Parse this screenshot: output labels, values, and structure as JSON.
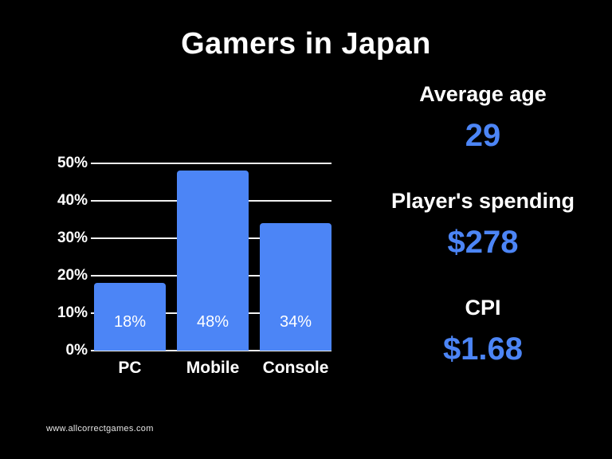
{
  "title": "Gamers in Japan",
  "colors": {
    "background": "#000000",
    "accent": "#4c85f6",
    "text": "#ffffff",
    "gridline": "#f2f2f2"
  },
  "chart_data": {
    "type": "bar",
    "title": "Gamers in Japan",
    "categories": [
      "PC",
      "Mobile",
      "Console"
    ],
    "values": [
      18,
      48,
      34
    ],
    "value_labels": [
      "18%",
      "48%",
      "34%"
    ],
    "xlabel": "",
    "ylabel": "",
    "ylim": [
      0,
      50
    ],
    "yticks": [
      "0%",
      "10%",
      "20%",
      "30%",
      "40%",
      "50%"
    ],
    "grid": true,
    "legend": "none",
    "bar_color": "#4c85f6"
  },
  "stats": [
    {
      "label": "Average age",
      "value": "29"
    },
    {
      "label": "Player's spending",
      "value": "$278"
    },
    {
      "label": "CPI",
      "value": "$1.68"
    }
  ],
  "footer": {
    "url": "www.allcorrectgames.com"
  }
}
